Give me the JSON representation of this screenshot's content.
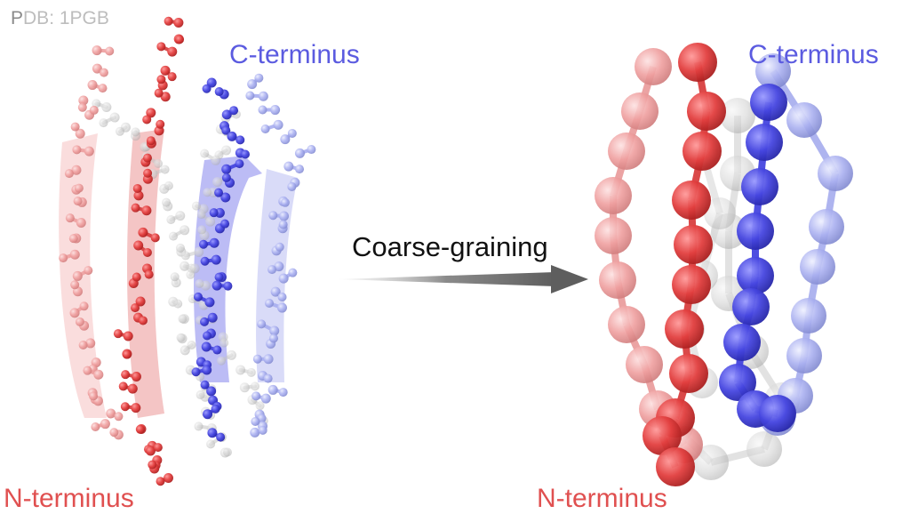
{
  "labels": {
    "pdb_first": "P",
    "pdb_rest": "DB: 1PGB",
    "left_c_terminus": "C-terminus",
    "left_n_terminus": "N-terminus",
    "right_c_terminus": "C-terminus",
    "right_n_terminus": "N-terminus",
    "process": "Coarse-graining"
  },
  "colors": {
    "red": "#e04848",
    "pink": "#f0a0a0",
    "blue": "#4848e0",
    "lightblue": "#a8aef0",
    "gray": "#bdbdbd",
    "arrow": "#6b6b6b"
  },
  "panels": [
    {
      "name": "atomistic-structure",
      "style": "ball-and-stick with ribbon"
    },
    {
      "name": "coarse-grained-structure",
      "style": "bead chain"
    }
  ]
}
